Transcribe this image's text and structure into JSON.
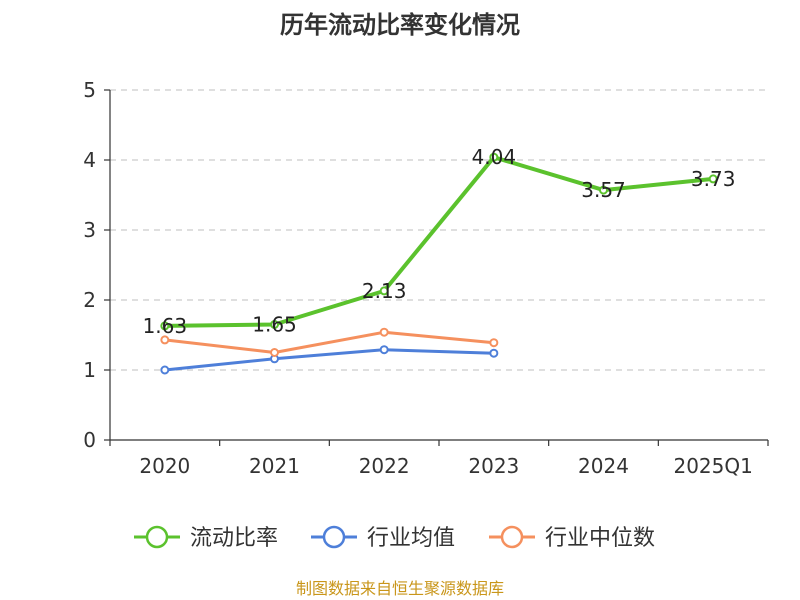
{
  "chart_data": {
    "type": "line",
    "title": "历年流动比率变化情况",
    "categories": [
      "2020",
      "2021",
      "2022",
      "2023",
      "2024",
      "2025Q1"
    ],
    "ylim": [
      0,
      5
    ],
    "yticks": [
      0,
      1,
      2,
      3,
      4,
      5
    ],
    "grid": "horizontal dashed",
    "legend_position": "bottom",
    "series": [
      {
        "name": "流动比率",
        "color": "#5bc22d",
        "values": [
          1.63,
          1.65,
          2.13,
          4.04,
          3.57,
          3.73
        ],
        "labels": [
          "1.63",
          "1.65",
          "2.13",
          "4.04",
          "3.57",
          "3.73"
        ]
      },
      {
        "name": "行业均值",
        "color": "#4e7fd9",
        "values": [
          1.0,
          1.16,
          1.29,
          1.24,
          null,
          null
        ]
      },
      {
        "name": "行业中位数",
        "color": "#f5905e",
        "values": [
          1.43,
          1.25,
          1.54,
          1.39,
          null,
          null
        ]
      }
    ]
  },
  "footer": {
    "source": "制图数据来自恒生聚源数据库",
    "source_color": "#c9961a"
  }
}
